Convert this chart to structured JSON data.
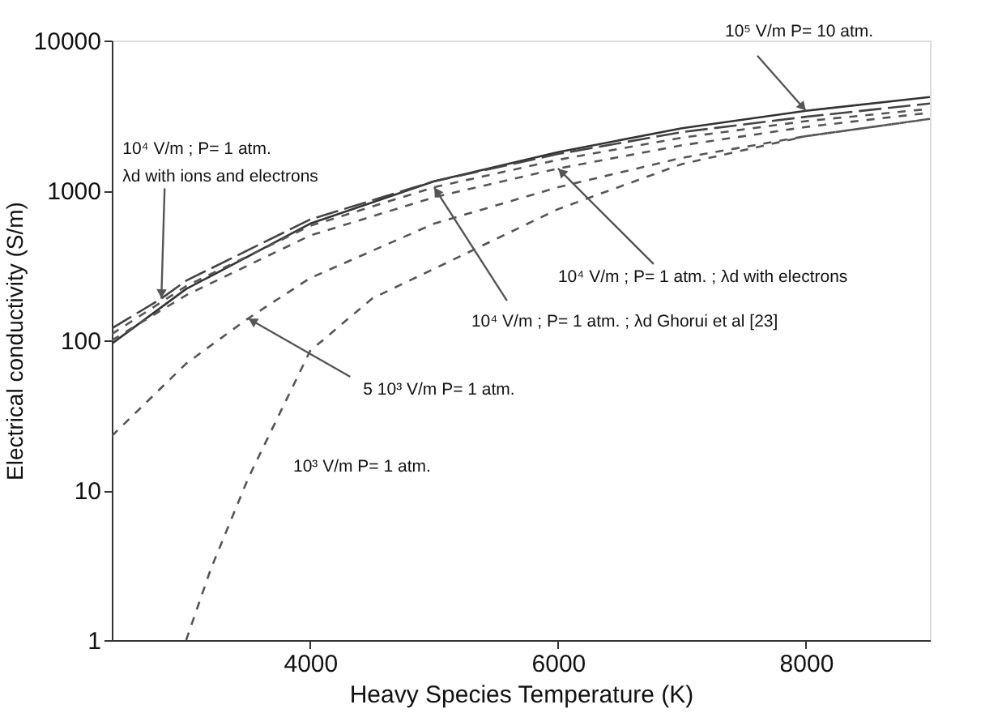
{
  "chart_data": {
    "type": "line",
    "xlabel": "Heavy Species Temperature (K)",
    "ylabel": "Electrical conductivity (S/m)",
    "x": [
      2400,
      3000,
      4000,
      5000,
      6000,
      7000,
      8000,
      9000
    ],
    "series": [
      {
        "color": "#333333",
        "line_style": "solid",
        "values": [
          95,
          220,
          600,
          1150,
          1800,
          2600,
          3400,
          4200
        ]
      },
      {
        "color": "#444444",
        "line_style": "dashed",
        "x": [
          2400,
          2800,
          3000,
          4000,
          5000,
          6000,
          7000,
          8000,
          9000
        ],
        "values": [
          120,
          190,
          250,
          640,
          1150,
          1750,
          2450,
          3100,
          3800
        ]
      },
      {
        "color": "#555555",
        "line_style": "dotted",
        "values": [
          110,
          230,
          580,
          1050,
          1600,
          2250,
          2900,
          3500
        ]
      },
      {
        "color": "#555555",
        "line_style": "dotted",
        "values": [
          100,
          200,
          500,
          900,
          1400,
          2000,
          2650,
          3300
        ]
      },
      {
        "color": "#555555",
        "line_style": "dotted",
        "x": [
          2400,
          3000,
          3500,
          4000,
          5000,
          6000,
          7000,
          8000,
          9000
        ],
        "values": [
          23,
          70,
          140,
          260,
          600,
          1050,
          1650,
          2300,
          3000
        ]
      },
      {
        "color": "#555555",
        "line_style": "dotted",
        "x": [
          3000,
          3200,
          3500,
          4000,
          4500,
          5000,
          6000,
          7000,
          8000,
          9000
        ],
        "values": [
          1,
          3,
          12,
          85,
          190,
          300,
          750,
          1500,
          2300,
          3000
        ]
      }
    ],
    "xlim": [
      2400,
      9000
    ],
    "ylim": [
      1,
      10000
    ],
    "xticks": [
      4000,
      6000,
      8000
    ],
    "yticks": [
      1,
      10,
      100,
      1000,
      10000
    ],
    "log": "y",
    "grid": false,
    "annotations": [
      {
        "text": "10⁵ V/m P= 10 atm.",
        "x": 8000,
        "y": 3400
      },
      {
        "text": "10⁴ V/m ; P= 1 atm.\nλd with ions and electrons",
        "x": 2800,
        "y": 190
      },
      {
        "text": "10⁴ V/m ; P= 1 atm. ; λd with electrons",
        "x": 6000,
        "y": 1400
      },
      {
        "text": "10⁴ V/m ; P= 1 atm. ; λd Ghorui et al [23]",
        "x": 5000,
        "y": 1050
      },
      {
        "text": "5 10³ V/m P= 1 atm.",
        "x": 3500,
        "y": 140
      },
      "10³ V/m P= 1 atm."
    ]
  }
}
